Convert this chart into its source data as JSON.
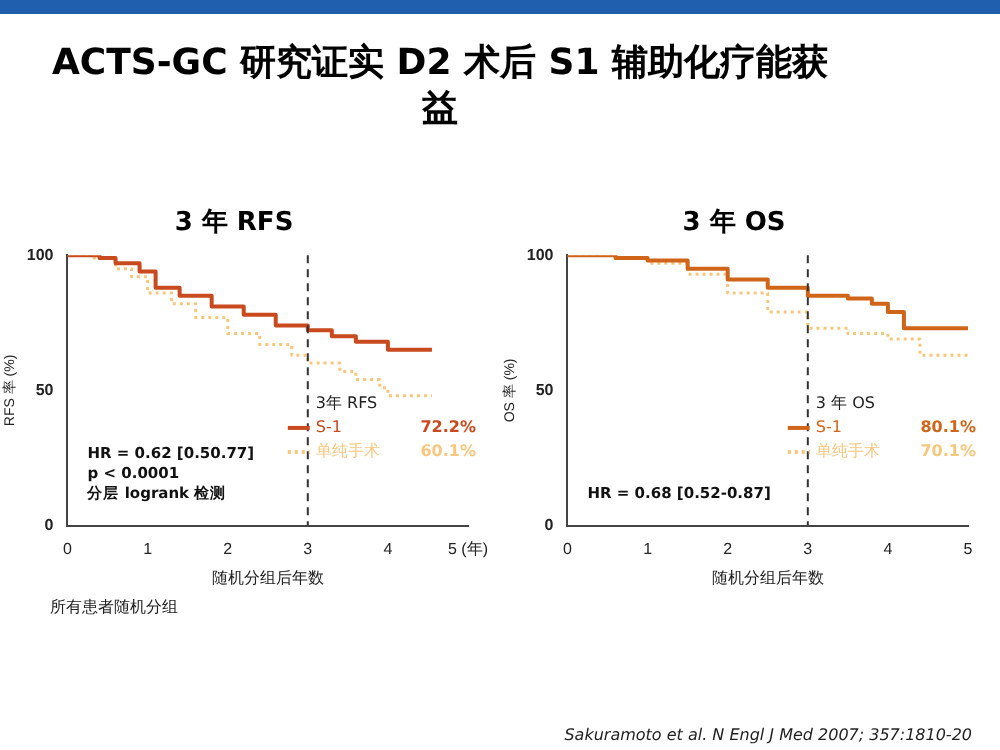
{
  "chart_data": [
    {
      "type": "step",
      "title": "ACTS-GC 研究证实 D2 术后 S1 辅助化疗能获益",
      "subtitle": "3 年 RFS",
      "xlabel": "随机分组后年数",
      "ylabel": "RFS 率 (%)",
      "legend_title": "3年 RFS",
      "legend": "bottom right",
      "xlim": [
        0,
        5
      ],
      "ylim": [
        0,
        100
      ],
      "xticks": [
        0,
        1,
        2,
        3,
        4,
        {
          "value": 5,
          "label": "5 (年)"
        }
      ],
      "yticks": [
        0,
        50,
        100
      ],
      "ref_lines": [
        {
          "axis": "x",
          "value": 3,
          "line_style": "dashed"
        }
      ],
      "series": [
        {
          "name": "S-1",
          "color": "#c84a1e",
          "line_style": "solid",
          "x": [
            0,
            0.4,
            0.6,
            0.9,
            1.1,
            1.4,
            1.8,
            2.2,
            2.6,
            3.0,
            3.3,
            3.6,
            4.0,
            4.55
          ],
          "values": [
            100,
            99,
            97,
            94,
            88,
            85,
            81,
            78,
            74,
            72.2,
            70,
            68,
            65,
            65
          ]
        },
        {
          "name": "单纯手术",
          "color": "#f8c77e",
          "line_style": "dotted",
          "x": [
            0,
            0.3,
            0.6,
            0.8,
            1.0,
            1.3,
            1.6,
            2.0,
            2.4,
            2.8,
            3.0,
            3.4,
            3.6,
            3.9,
            4.0,
            4.55
          ],
          "values": [
            100,
            99,
            95,
            92,
            86,
            82,
            77,
            71,
            67,
            63,
            60.1,
            57,
            54,
            51,
            48,
            48
          ]
        }
      ],
      "annotations": [
        "72.2%",
        "60.1%",
        "HR = 0.62 [0.50.77]",
        "p < 0.0001",
        "分层 logrank 检测",
        "所有患者随机分组"
      ]
    },
    {
      "type": "step",
      "title": "3 年 OS",
      "xlabel": "随机分组后年数",
      "ylabel": "OS 率 (%)",
      "legend_title": "3 年 OS",
      "legend": "bottom right",
      "xlim": [
        0,
        5
      ],
      "ylim": [
        0,
        100
      ],
      "xticks": [
        0,
        1,
        2,
        3,
        4,
        5
      ],
      "yticks": [
        0,
        50,
        100
      ],
      "ref_lines": [
        {
          "axis": "x",
          "value": 3,
          "line_style": "dashed"
        }
      ],
      "series": [
        {
          "name": "S-1",
          "color": "#d0651a",
          "line_style": "solid",
          "x": [
            0,
            0.6,
            1.0,
            1.5,
            2.0,
            2.5,
            3.0,
            3.5,
            3.8,
            4.0,
            4.2,
            5.0
          ],
          "values": [
            100,
            99,
            98,
            95,
            91,
            88,
            85,
            84,
            82,
            79,
            73,
            73
          ]
        },
        {
          "name": "单纯手术",
          "color": "#f5c77e",
          "line_style": "dotted",
          "x": [
            0,
            0.6,
            1.0,
            1.5,
            2.0,
            2.5,
            3.0,
            3.5,
            4.0,
            4.4,
            5.0
          ],
          "values": [
            100,
            99,
            97,
            93,
            86,
            79,
            73,
            71,
            69,
            63,
            63
          ]
        }
      ],
      "annotations": [
        "80.1%",
        "70.1%",
        "HR = 0.68 [0.52-0.87]",
        "Sakuramoto et al. N Engl J Med 2007; 357:1810-20"
      ]
    }
  ]
}
